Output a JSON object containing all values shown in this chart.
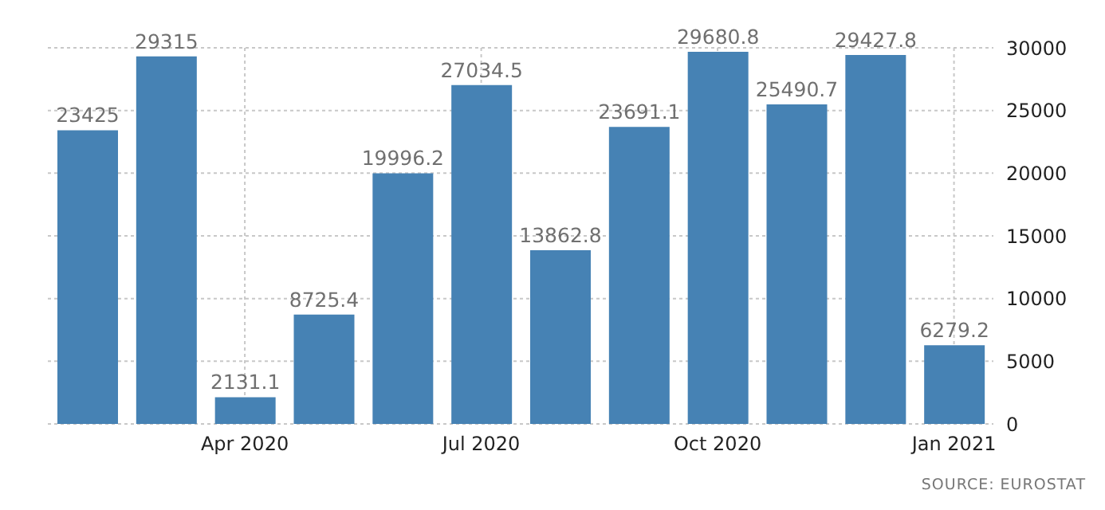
{
  "chart_data": {
    "type": "bar",
    "categories": [
      null,
      null,
      "Apr 2020",
      null,
      null,
      "Jul 2020",
      null,
      null,
      "Oct 2020",
      null,
      null,
      "Jan 2021"
    ],
    "values": [
      23425,
      29315,
      2131.1,
      8725.4,
      19996.2,
      27034.5,
      13862.8,
      23691.1,
      29680.8,
      25490.7,
      29427.8,
      6279.2
    ],
    "color": "#4682b4",
    "ylim": [
      0,
      30000
    ],
    "yticks": [
      0,
      5000,
      10000,
      15000,
      20000,
      25000,
      30000
    ],
    "grid": true,
    "data_labels": true,
    "annotations": [
      "SOURCE: EUROSTAT"
    ]
  }
}
